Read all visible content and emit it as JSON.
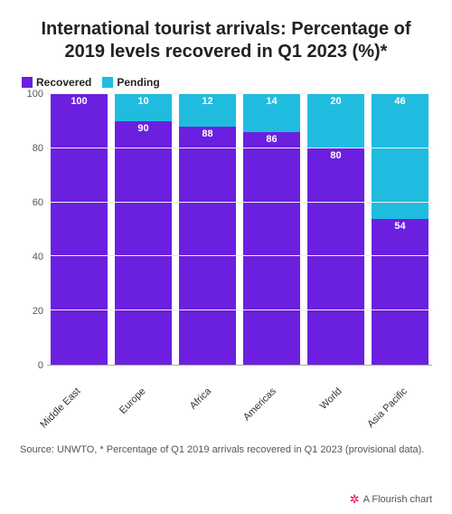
{
  "title": "International tourist arrivals: Percentage of 2019 levels recovered in Q1 2023 (%)*",
  "legend": {
    "items": [
      {
        "label": "Recovered",
        "color": "#6b20e0"
      },
      {
        "label": "Pending",
        "color": "#20bce0"
      }
    ]
  },
  "chart": {
    "type": "stacked-bar",
    "y_max": 100,
    "y_ticks": [
      0,
      20,
      40,
      60,
      80,
      100
    ],
    "background_color": "#ffffff",
    "grid_color": "#eeeeee",
    "axis_color": "#aaaaaa",
    "label_fontsize": 11,
    "title_fontsize": 20,
    "value_label_color": "#ffffff",
    "bar_gap_ratio": 0.12,
    "categories": [
      "Middle East",
      "Europe",
      "Africa",
      "Americas",
      "World",
      "Asia Pacific"
    ],
    "series": [
      {
        "name": "Recovered",
        "color": "#6b20e0",
        "values": [
          100,
          90,
          88,
          86,
          80,
          54
        ],
        "show_zero_label": false
      },
      {
        "name": "Pending",
        "color": "#20bce0",
        "values": [
          0,
          10,
          12,
          14,
          20,
          46
        ],
        "show_zero_label": false
      }
    ]
  },
  "source": "Source: UNWTO, * Percentage of Q1 2019 arrivals recovered in Q1 2023 (provisional data).",
  "credit": {
    "icon": "✲",
    "text": "A Flourish chart"
  }
}
